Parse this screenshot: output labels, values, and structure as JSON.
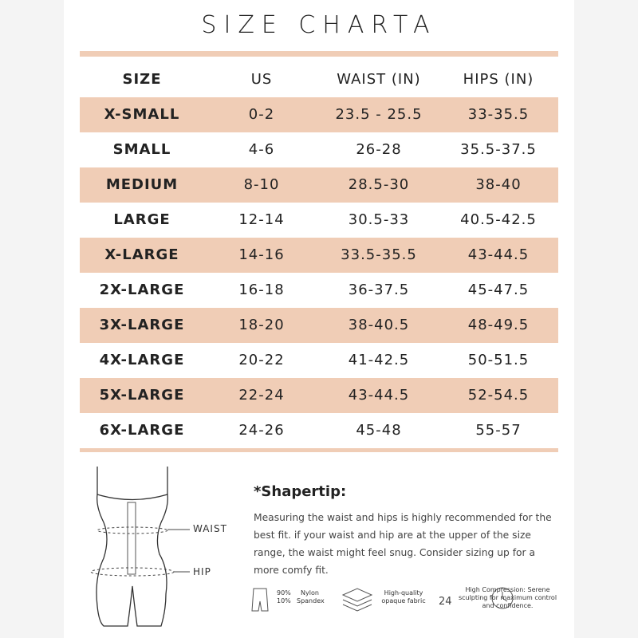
{
  "header": {
    "title": "SIZE CHARTA"
  },
  "table": {
    "columns": [
      "SIZE",
      "US",
      "WAIST (IN)",
      "HIPS (IN)"
    ],
    "rows": [
      [
        "X-SMALL",
        "0-2",
        "23.5 - 25.5",
        "33-35.5"
      ],
      [
        "SMALL",
        "4-6",
        "26-28",
        "35.5-37.5"
      ],
      [
        "MEDIUM",
        "8-10",
        "28.5-30",
        "38-40"
      ],
      [
        "LARGE",
        "12-14",
        "30.5-33",
        "40.5-42.5"
      ],
      [
        "X-LARGE",
        "14-16",
        "33.5-35.5",
        "43-44.5"
      ],
      [
        "2X-LARGE",
        "16-18",
        "36-37.5",
        "45-47.5"
      ],
      [
        "3X-LARGE",
        "18-20",
        "38-40.5",
        "48-49.5"
      ],
      [
        "4X-LARGE",
        "20-22",
        "41-42.5",
        "50-51.5"
      ],
      [
        "5X-LARGE",
        "22-24",
        "43-44.5",
        "52-54.5"
      ],
      [
        "6X-LARGE",
        "24-26",
        "45-48",
        "55-57"
      ]
    ]
  },
  "diagram": {
    "waist": "WAIST",
    "hip": "HIP"
  },
  "tip": {
    "title": "*Shapertip:",
    "text": "Measuring the waist and hips is highly recommended for the best fit. if your waist and hip are at the upper of the size range, the waist might feel snug. Consider sizing up for a more comfy fit."
  },
  "features": {
    "percents": [
      "90%",
      "10%"
    ],
    "fibers": [
      "Nylon",
      "Spandex"
    ],
    "fabric": "High-quality opaque fabric",
    "hours": "24",
    "compression": "High Compression: Serene sculpting for maximum control and confidence."
  }
}
